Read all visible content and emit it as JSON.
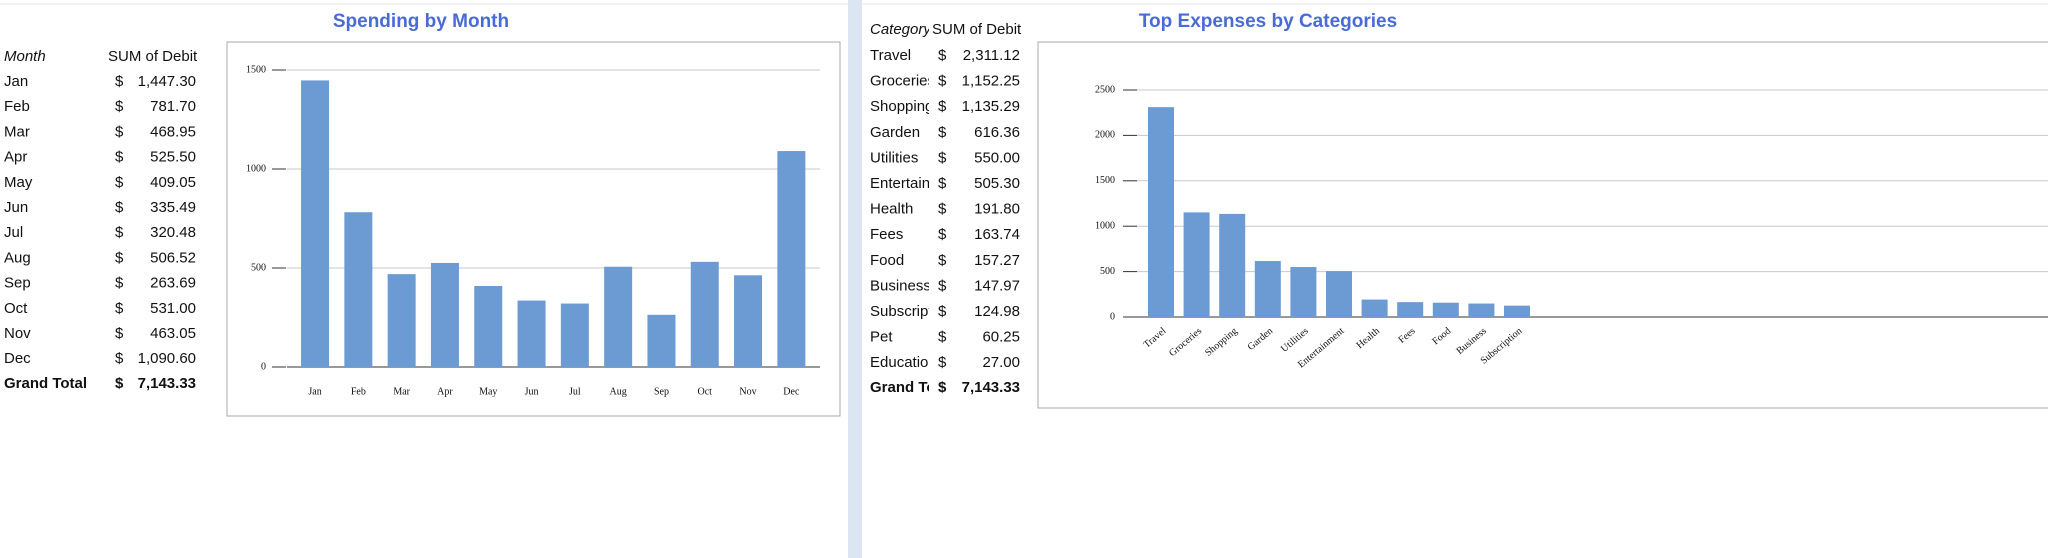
{
  "tables": [
    {
      "header": [
        "Month",
        "SUM of Debit"
      ],
      "rows": [
        [
          "Jan",
          "$",
          "1,447.30"
        ],
        [
          "Feb",
          "$",
          "781.70"
        ],
        [
          "Mar",
          "$",
          "468.95"
        ],
        [
          "Apr",
          "$",
          "525.50"
        ],
        [
          "May",
          "$",
          "409.05"
        ],
        [
          "Jun",
          "$",
          "335.49"
        ],
        [
          "Jul",
          "$",
          "320.48"
        ],
        [
          "Aug",
          "$",
          "506.52"
        ],
        [
          "Sep",
          "$",
          "263.69"
        ],
        [
          "Oct",
          "$",
          "531.00"
        ],
        [
          "Nov",
          "$",
          "463.05"
        ],
        [
          "Dec",
          "$",
          "1,090.60"
        ]
      ],
      "total": [
        "Grand Total",
        "$",
        "7,143.33"
      ]
    },
    {
      "header": [
        "Category",
        "SUM of Debit"
      ],
      "rows": [
        [
          "Travel",
          "$",
          "2,311.12"
        ],
        [
          "Groceries",
          "$",
          "1,152.25"
        ],
        [
          "Shopping",
          "$",
          "1,135.29"
        ],
        [
          "Garden",
          "$",
          "616.36"
        ],
        [
          "Utilities",
          "$",
          "550.00"
        ],
        [
          "Entertainment",
          "$",
          "505.30"
        ],
        [
          "Health",
          "$",
          "191.80"
        ],
        [
          "Fees",
          "$",
          "163.74"
        ],
        [
          "Food",
          "$",
          "157.27"
        ],
        [
          "Business",
          "$",
          "147.97"
        ],
        [
          "Subscription",
          "$",
          "124.98"
        ],
        [
          "Pet",
          "$",
          "60.25"
        ],
        [
          "Education",
          "$",
          "27.00"
        ]
      ],
      "total": [
        "Grand Total",
        "$",
        "7,143.33"
      ]
    }
  ],
  "chart_data": [
    {
      "type": "bar",
      "title": "Spending by Month",
      "categories": [
        "Jan",
        "Feb",
        "Mar",
        "Apr",
        "May",
        "Jun",
        "Jul",
        "Aug",
        "Sep",
        "Oct",
        "Nov",
        "Dec"
      ],
      "values": [
        1447.3,
        781.7,
        468.95,
        525.5,
        409.05,
        335.49,
        320.48,
        506.52,
        263.69,
        531.0,
        463.05,
        1090.6
      ],
      "color": "#6b9bd2",
      "ylim": [
        0,
        1500
      ],
      "yticks": [
        0,
        500,
        1000,
        1500
      ],
      "grid": true
    },
    {
      "type": "bar",
      "title": "Top Expenses by Categories",
      "categories": [
        "Travel",
        "Groceries",
        "Shopping",
        "Garden",
        "Utilities",
        "Entertainment",
        "Health",
        "Fees",
        "Food",
        "Business",
        "Subscription"
      ],
      "values": [
        2311.12,
        1152.25,
        1135.29,
        616.36,
        550.0,
        505.3,
        191.8,
        163.74,
        157.27,
        147.97,
        124.98
      ],
      "color": "#6b9bd2",
      "ylim": [
        0,
        2500
      ],
      "yticks": [
        0,
        500,
        1000,
        1500,
        2000,
        2500
      ],
      "grid": true
    }
  ]
}
